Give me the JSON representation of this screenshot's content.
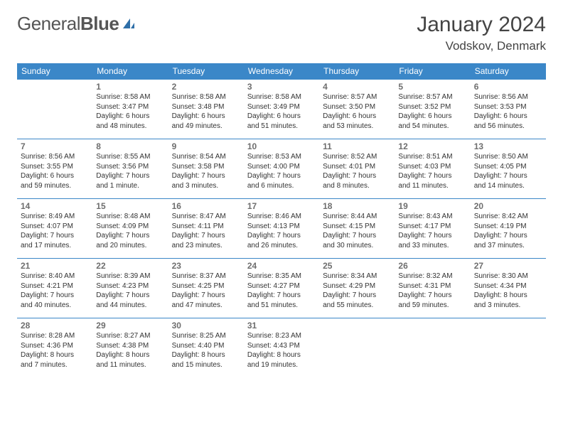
{
  "brand": {
    "name1": "General",
    "name2": "Blue"
  },
  "title": "January 2024",
  "location": "Vodskov, Denmark",
  "colors": {
    "header_bg": "#3b87c8",
    "header_text": "#ffffff",
    "border": "#3b87c8",
    "daynum": "#6e6e6e",
    "body_text": "#333333",
    "logo_blue": "#2f6fa8"
  },
  "weekdays": [
    "Sunday",
    "Monday",
    "Tuesday",
    "Wednesday",
    "Thursday",
    "Friday",
    "Saturday"
  ],
  "weeks": [
    [
      null,
      {
        "n": "1",
        "sr": "Sunrise: 8:58 AM",
        "ss": "Sunset: 3:47 PM",
        "d1": "Daylight: 6 hours",
        "d2": "and 48 minutes."
      },
      {
        "n": "2",
        "sr": "Sunrise: 8:58 AM",
        "ss": "Sunset: 3:48 PM",
        "d1": "Daylight: 6 hours",
        "d2": "and 49 minutes."
      },
      {
        "n": "3",
        "sr": "Sunrise: 8:58 AM",
        "ss": "Sunset: 3:49 PM",
        "d1": "Daylight: 6 hours",
        "d2": "and 51 minutes."
      },
      {
        "n": "4",
        "sr": "Sunrise: 8:57 AM",
        "ss": "Sunset: 3:50 PM",
        "d1": "Daylight: 6 hours",
        "d2": "and 53 minutes."
      },
      {
        "n": "5",
        "sr": "Sunrise: 8:57 AM",
        "ss": "Sunset: 3:52 PM",
        "d1": "Daylight: 6 hours",
        "d2": "and 54 minutes."
      },
      {
        "n": "6",
        "sr": "Sunrise: 8:56 AM",
        "ss": "Sunset: 3:53 PM",
        "d1": "Daylight: 6 hours",
        "d2": "and 56 minutes."
      }
    ],
    [
      {
        "n": "7",
        "sr": "Sunrise: 8:56 AM",
        "ss": "Sunset: 3:55 PM",
        "d1": "Daylight: 6 hours",
        "d2": "and 59 minutes."
      },
      {
        "n": "8",
        "sr": "Sunrise: 8:55 AM",
        "ss": "Sunset: 3:56 PM",
        "d1": "Daylight: 7 hours",
        "d2": "and 1 minute."
      },
      {
        "n": "9",
        "sr": "Sunrise: 8:54 AM",
        "ss": "Sunset: 3:58 PM",
        "d1": "Daylight: 7 hours",
        "d2": "and 3 minutes."
      },
      {
        "n": "10",
        "sr": "Sunrise: 8:53 AM",
        "ss": "Sunset: 4:00 PM",
        "d1": "Daylight: 7 hours",
        "d2": "and 6 minutes."
      },
      {
        "n": "11",
        "sr": "Sunrise: 8:52 AM",
        "ss": "Sunset: 4:01 PM",
        "d1": "Daylight: 7 hours",
        "d2": "and 8 minutes."
      },
      {
        "n": "12",
        "sr": "Sunrise: 8:51 AM",
        "ss": "Sunset: 4:03 PM",
        "d1": "Daylight: 7 hours",
        "d2": "and 11 minutes."
      },
      {
        "n": "13",
        "sr": "Sunrise: 8:50 AM",
        "ss": "Sunset: 4:05 PM",
        "d1": "Daylight: 7 hours",
        "d2": "and 14 minutes."
      }
    ],
    [
      {
        "n": "14",
        "sr": "Sunrise: 8:49 AM",
        "ss": "Sunset: 4:07 PM",
        "d1": "Daylight: 7 hours",
        "d2": "and 17 minutes."
      },
      {
        "n": "15",
        "sr": "Sunrise: 8:48 AM",
        "ss": "Sunset: 4:09 PM",
        "d1": "Daylight: 7 hours",
        "d2": "and 20 minutes."
      },
      {
        "n": "16",
        "sr": "Sunrise: 8:47 AM",
        "ss": "Sunset: 4:11 PM",
        "d1": "Daylight: 7 hours",
        "d2": "and 23 minutes."
      },
      {
        "n": "17",
        "sr": "Sunrise: 8:46 AM",
        "ss": "Sunset: 4:13 PM",
        "d1": "Daylight: 7 hours",
        "d2": "and 26 minutes."
      },
      {
        "n": "18",
        "sr": "Sunrise: 8:44 AM",
        "ss": "Sunset: 4:15 PM",
        "d1": "Daylight: 7 hours",
        "d2": "and 30 minutes."
      },
      {
        "n": "19",
        "sr": "Sunrise: 8:43 AM",
        "ss": "Sunset: 4:17 PM",
        "d1": "Daylight: 7 hours",
        "d2": "and 33 minutes."
      },
      {
        "n": "20",
        "sr": "Sunrise: 8:42 AM",
        "ss": "Sunset: 4:19 PM",
        "d1": "Daylight: 7 hours",
        "d2": "and 37 minutes."
      }
    ],
    [
      {
        "n": "21",
        "sr": "Sunrise: 8:40 AM",
        "ss": "Sunset: 4:21 PM",
        "d1": "Daylight: 7 hours",
        "d2": "and 40 minutes."
      },
      {
        "n": "22",
        "sr": "Sunrise: 8:39 AM",
        "ss": "Sunset: 4:23 PM",
        "d1": "Daylight: 7 hours",
        "d2": "and 44 minutes."
      },
      {
        "n": "23",
        "sr": "Sunrise: 8:37 AM",
        "ss": "Sunset: 4:25 PM",
        "d1": "Daylight: 7 hours",
        "d2": "and 47 minutes."
      },
      {
        "n": "24",
        "sr": "Sunrise: 8:35 AM",
        "ss": "Sunset: 4:27 PM",
        "d1": "Daylight: 7 hours",
        "d2": "and 51 minutes."
      },
      {
        "n": "25",
        "sr": "Sunrise: 8:34 AM",
        "ss": "Sunset: 4:29 PM",
        "d1": "Daylight: 7 hours",
        "d2": "and 55 minutes."
      },
      {
        "n": "26",
        "sr": "Sunrise: 8:32 AM",
        "ss": "Sunset: 4:31 PM",
        "d1": "Daylight: 7 hours",
        "d2": "and 59 minutes."
      },
      {
        "n": "27",
        "sr": "Sunrise: 8:30 AM",
        "ss": "Sunset: 4:34 PM",
        "d1": "Daylight: 8 hours",
        "d2": "and 3 minutes."
      }
    ],
    [
      {
        "n": "28",
        "sr": "Sunrise: 8:28 AM",
        "ss": "Sunset: 4:36 PM",
        "d1": "Daylight: 8 hours",
        "d2": "and 7 minutes."
      },
      {
        "n": "29",
        "sr": "Sunrise: 8:27 AM",
        "ss": "Sunset: 4:38 PM",
        "d1": "Daylight: 8 hours",
        "d2": "and 11 minutes."
      },
      {
        "n": "30",
        "sr": "Sunrise: 8:25 AM",
        "ss": "Sunset: 4:40 PM",
        "d1": "Daylight: 8 hours",
        "d2": "and 15 minutes."
      },
      {
        "n": "31",
        "sr": "Sunrise: 8:23 AM",
        "ss": "Sunset: 4:43 PM",
        "d1": "Daylight: 8 hours",
        "d2": "and 19 minutes."
      },
      null,
      null,
      null
    ]
  ]
}
